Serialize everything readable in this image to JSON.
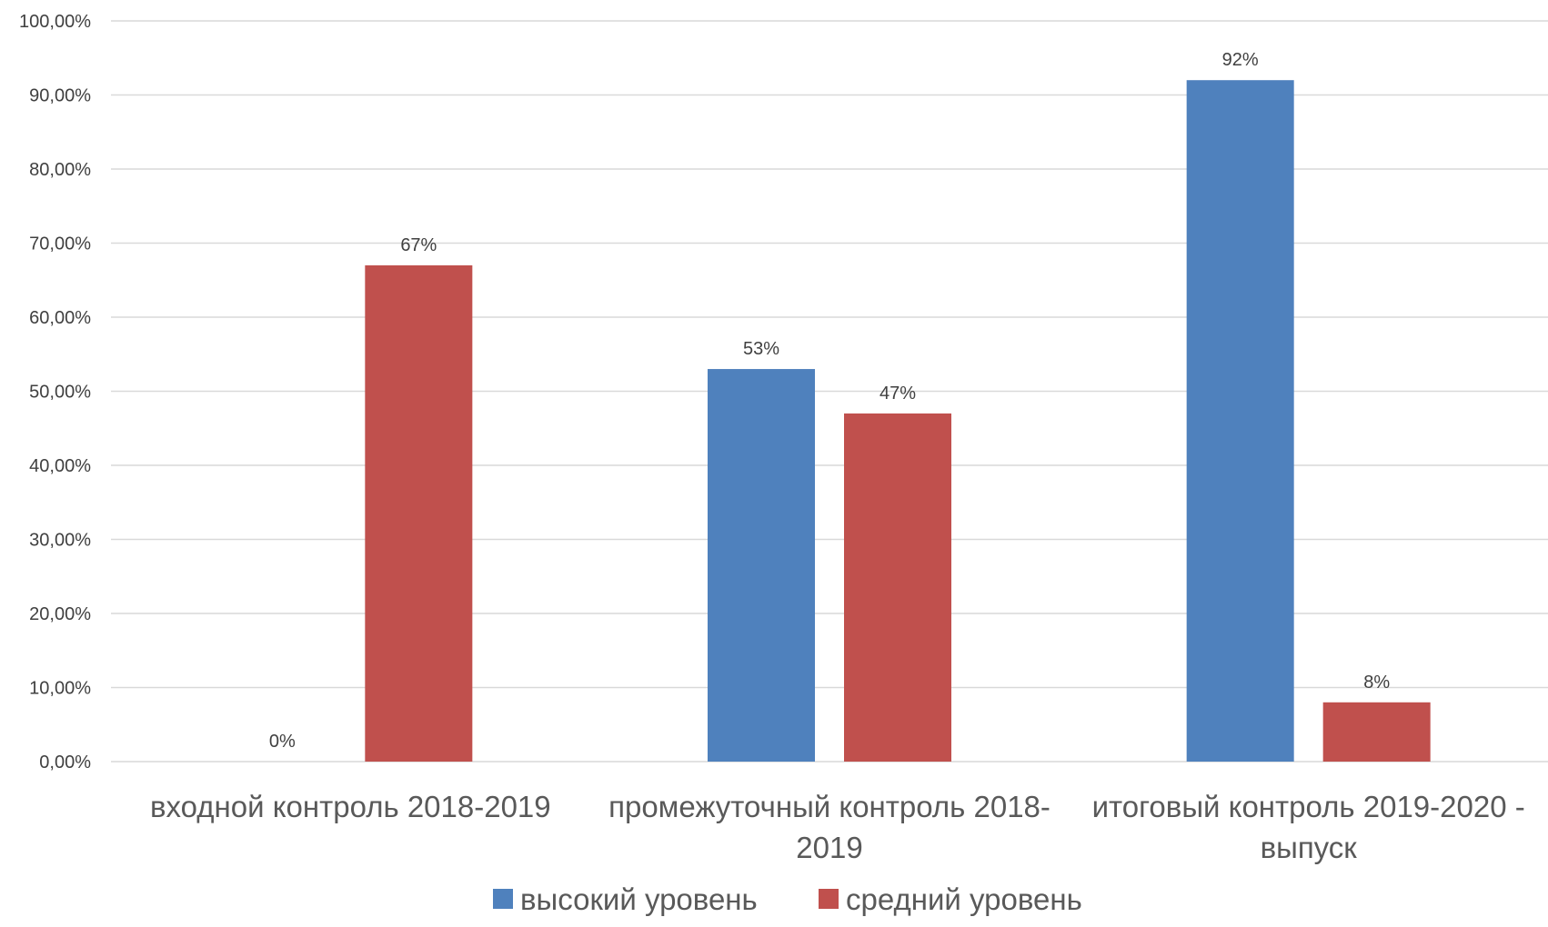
{
  "chart_data": {
    "type": "bar",
    "categories": [
      [
        "входной контроль 2018-2019"
      ],
      [
        "промежуточный контроль 2018-",
        "2019"
      ],
      [
        "итоговый контроль 2019-2020 -",
        "выпуск"
      ]
    ],
    "series": [
      {
        "name": "высокий уровень",
        "color": "#4F81BD",
        "values": [
          0,
          53,
          92
        ],
        "labels": [
          "0%",
          "53%",
          "92%"
        ]
      },
      {
        "name": "средний уровень",
        "color": "#C0504D",
        "values": [
          67,
          47,
          8
        ],
        "labels": [
          "67%",
          "47%",
          "8%"
        ]
      }
    ],
    "yticks": [
      "0,00%",
      "10,00%",
      "20,00%",
      "30,00%",
      "40,00%",
      "50,00%",
      "60,00%",
      "70,00%",
      "80,00%",
      "90,00%",
      "100,00%"
    ],
    "ylim": [
      0,
      100
    ],
    "grid": true,
    "legend_position": "bottom"
  }
}
